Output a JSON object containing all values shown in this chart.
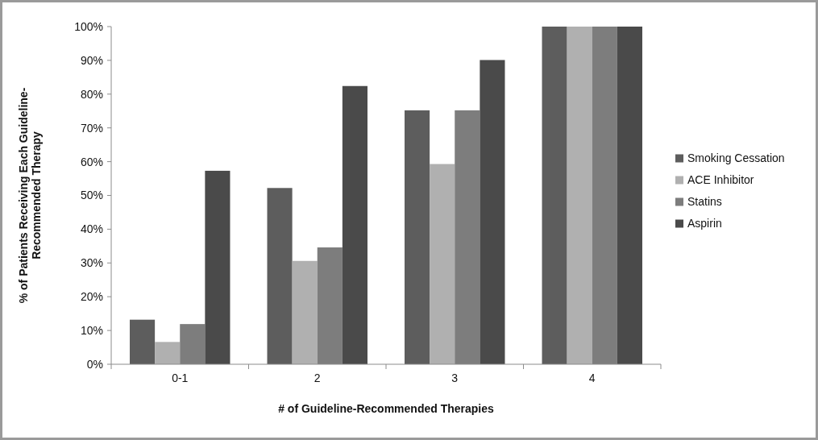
{
  "chart_data": {
    "type": "bar",
    "categories": [
      "0-1",
      "2",
      "3",
      "4"
    ],
    "series": [
      {
        "name": "Smoking Cessation",
        "color": "#5d5d5d",
        "values": [
          13.2,
          52.2,
          75.2,
          100
        ]
      },
      {
        "name": "ACE Inhibitor",
        "color": "#b0b0b0",
        "values": [
          6.6,
          30.6,
          59.3,
          100
        ]
      },
      {
        "name": "Statins",
        "color": "#7d7d7d",
        "values": [
          11.9,
          34.6,
          75.2,
          100
        ]
      },
      {
        "name": "Aspirin",
        "color": "#4a4a4a",
        "values": [
          57.3,
          82.4,
          90.1,
          100
        ]
      }
    ],
    "xlabel": "# of Guideline-Recommended Therapies",
    "ylabel": "% of Patients Receiving Each Guideline-Recommended Therapy",
    "ylim": [
      0,
      100
    ],
    "yticks": [
      {
        "value": 0,
        "label": "0%"
      },
      {
        "value": 10,
        "label": "10%"
      },
      {
        "value": 20,
        "label": "20%"
      },
      {
        "value": 30,
        "label": "30%"
      },
      {
        "value": 40,
        "label": "40%"
      },
      {
        "value": 50,
        "label": "50%"
      },
      {
        "value": 60,
        "label": "60%"
      },
      {
        "value": 70,
        "label": "70%"
      },
      {
        "value": 80,
        "label": "80%"
      },
      {
        "value": 90,
        "label": "90%"
      },
      {
        "value": 100,
        "label": "100%"
      }
    ],
    "grid": false,
    "legend": "right"
  }
}
